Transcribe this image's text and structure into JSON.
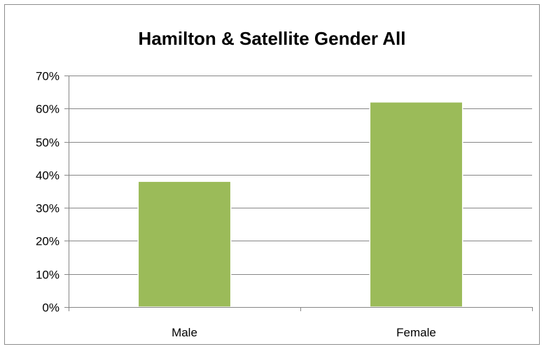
{
  "chart_data": {
    "type": "bar",
    "title": "Hamilton & Satellite Gender All",
    "categories": [
      "Male",
      "Female"
    ],
    "values": [
      0.38,
      0.62
    ],
    "xlabel": "",
    "ylabel": "",
    "ylim": [
      0,
      0.7
    ],
    "yticks": [
      0,
      0.1,
      0.2,
      0.3,
      0.4,
      0.5,
      0.6,
      0.7
    ],
    "ytick_labels": [
      "0%",
      "10%",
      "20%",
      "30%",
      "40%",
      "50%",
      "60%",
      "70%"
    ],
    "grid": true,
    "legend": "none",
    "bar_color": "#9bbb59",
    "grid_color": "#868686"
  }
}
